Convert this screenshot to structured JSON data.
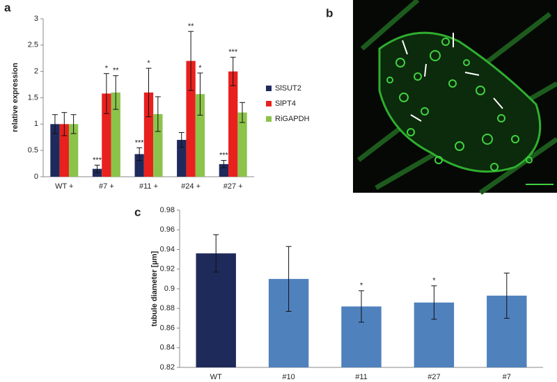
{
  "panel_labels": [
    "a",
    "b",
    "c"
  ],
  "chart_data": [
    {
      "type": "bar",
      "ylabel": "relative expression",
      "categories": [
        "WT +",
        "#7 +",
        "#11 +",
        "#24 +",
        "#27 +"
      ],
      "ylim": [
        0,
        3
      ],
      "yticks": [
        0,
        0.5,
        1,
        1.5,
        2,
        2.5,
        3
      ],
      "series": [
        {
          "name": "SlSUT2",
          "color": "#1f2a5c",
          "values": [
            1.0,
            0.15,
            0.43,
            0.7,
            0.24
          ],
          "errors": [
            0.18,
            0.07,
            0.12,
            0.14,
            0.07
          ],
          "significance": [
            null,
            "***",
            "***",
            null,
            "***"
          ]
        },
        {
          "name": "SlPT4",
          "color": "#e8211f",
          "values": [
            1.0,
            1.58,
            1.6,
            2.2,
            2.0
          ],
          "errors": [
            0.22,
            0.38,
            0.46,
            0.56,
            0.27
          ],
          "significance": [
            null,
            "*",
            "*",
            "**",
            "***"
          ]
        },
        {
          "name": "RiGAPDH",
          "color": "#8cc34b",
          "values": [
            1.0,
            1.6,
            1.19,
            1.57,
            1.22
          ],
          "errors": [
            0.18,
            0.32,
            0.33,
            0.4,
            0.19
          ],
          "significance": [
            null,
            "**",
            null,
            "*",
            null
          ]
        }
      ]
    },
    {
      "type": "bar",
      "ylabel": "tubule diameter [µm]",
      "categories": [
        "WT",
        "#10",
        "#11",
        "#27",
        "#7"
      ],
      "ylim": [
        0.82,
        0.98
      ],
      "yticks": [
        0.82,
        0.84,
        0.86,
        0.88,
        0.9,
        0.92,
        0.94,
        0.96,
        0.98
      ],
      "values": [
        0.936,
        0.91,
        0.882,
        0.886,
        0.893
      ],
      "errors": [
        0.019,
        0.033,
        0.016,
        0.017,
        0.023
      ],
      "significance": [
        null,
        null,
        "*",
        "*",
        null
      ],
      "colors": [
        "#1e2a5a",
        "#4f81bd",
        "#4f81bd",
        "#4f81bd",
        "#4f81bd"
      ]
    }
  ]
}
